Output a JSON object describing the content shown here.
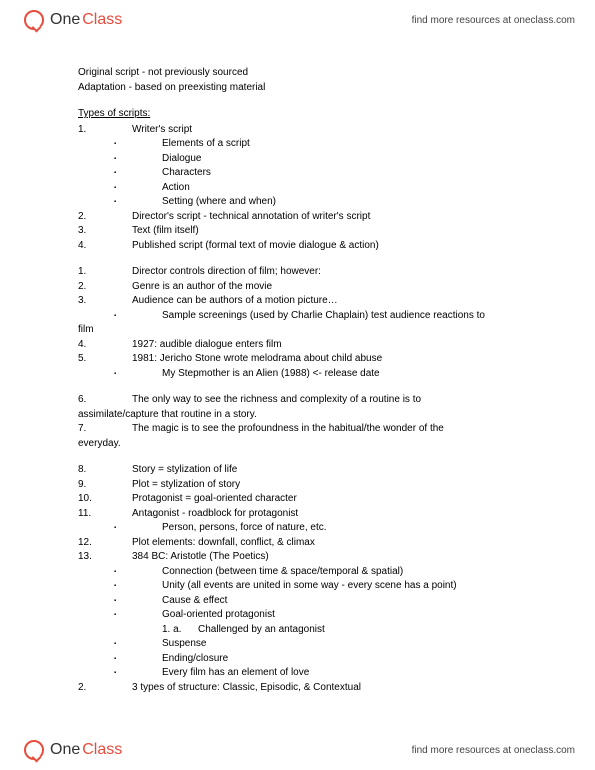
{
  "header": {
    "logo_one": "One",
    "logo_class": "Class",
    "link_text": "find more resources at oneclass.com",
    "link_url": "oneclass.com"
  },
  "footer": {
    "logo_one": "One",
    "logo_class": "Class",
    "link_text": "find more resources at oneclass.com"
  },
  "intro": {
    "line1": "Original script - not previously sourced",
    "line2": "Adaptation - based on preexisting material"
  },
  "section_title": "Types of scripts:",
  "listA": [
    {
      "n": "1.",
      "t": "Writer's script"
    },
    {
      "bul": true,
      "t": "Elements of a script"
    },
    {
      "bul": true,
      "t": "Dialogue"
    },
    {
      "bul": true,
      "t": "Characters"
    },
    {
      "bul": true,
      "t": "Action"
    },
    {
      "bul": true,
      "t": "Setting (where and when)"
    },
    {
      "n": "2.",
      "t": "Director's script - technical annotation of writer's script"
    },
    {
      "n": "3.",
      "t": "Text (film itself)"
    },
    {
      "n": "4.",
      "t": "Published script (formal text of movie dialogue & action)"
    }
  ],
  "listB": [
    {
      "n": "1.",
      "t": "Director controls direction of film; however:"
    },
    {
      "n": "2.",
      "t": "Genre is an author of the movie"
    },
    {
      "n": "3.",
      "t": "Audience can be authors of a motion picture…"
    },
    {
      "bul": true,
      "t": "Sample screenings (used by Charlie Chaplain) test audience reactions to",
      "wrap": "film"
    },
    {
      "n": "4.",
      "t": "1927: audible dialogue enters film"
    },
    {
      "n": "5.",
      "t": "1981: Jericho Stone wrote melodrama about child abuse"
    },
    {
      "bul": true,
      "t": "My Stepmother is an Alien (1988) <- release date"
    }
  ],
  "listC": [
    {
      "n": "6.",
      "t": "The only way to see the richness and complexity of a routine is to",
      "wrap": "assimilate/capture that routine in a story."
    },
    {
      "n": "7.",
      "t": "The magic is to see the profoundness in the habitual/the wonder of the",
      "wrap": "everyday."
    }
  ],
  "listD": [
    {
      "n": "8.",
      "t": "Story = stylization of life"
    },
    {
      "n": "9.",
      "t": "Plot = stylization of story"
    },
    {
      "n": "10.",
      "t": "Protagonist = goal-oriented character"
    },
    {
      "n": "11.",
      "t": "Antagonist - roadblock for protagonist"
    },
    {
      "bul": true,
      "t": "Person, persons, force of nature, etc."
    },
    {
      "n": "12.",
      "t": "Plot elements: downfall, conflict, & climax"
    },
    {
      "n": "13.",
      "t": "384 BC: Aristotle (The Poetics)"
    },
    {
      "bul": true,
      "t": "Connection (between time & space/temporal & spatial)"
    },
    {
      "bul": true,
      "t": "Unity (all events are united in some way - every scene has a point)"
    },
    {
      "bul": true,
      "t": "Cause & effect"
    },
    {
      "bul": true,
      "t": "Goal-oriented protagonist"
    },
    {
      "sub": "1.  a.",
      "t": "Challenged by an antagonist"
    },
    {
      "bul": true,
      "t": "Suspense"
    },
    {
      "bul": true,
      "t": "Ending/closure"
    },
    {
      "bul": true,
      "t": "Every film has an element of love"
    },
    {
      "n": "2.",
      "t": "3 types of structure: Classic, Episodic, & Contextual"
    }
  ]
}
